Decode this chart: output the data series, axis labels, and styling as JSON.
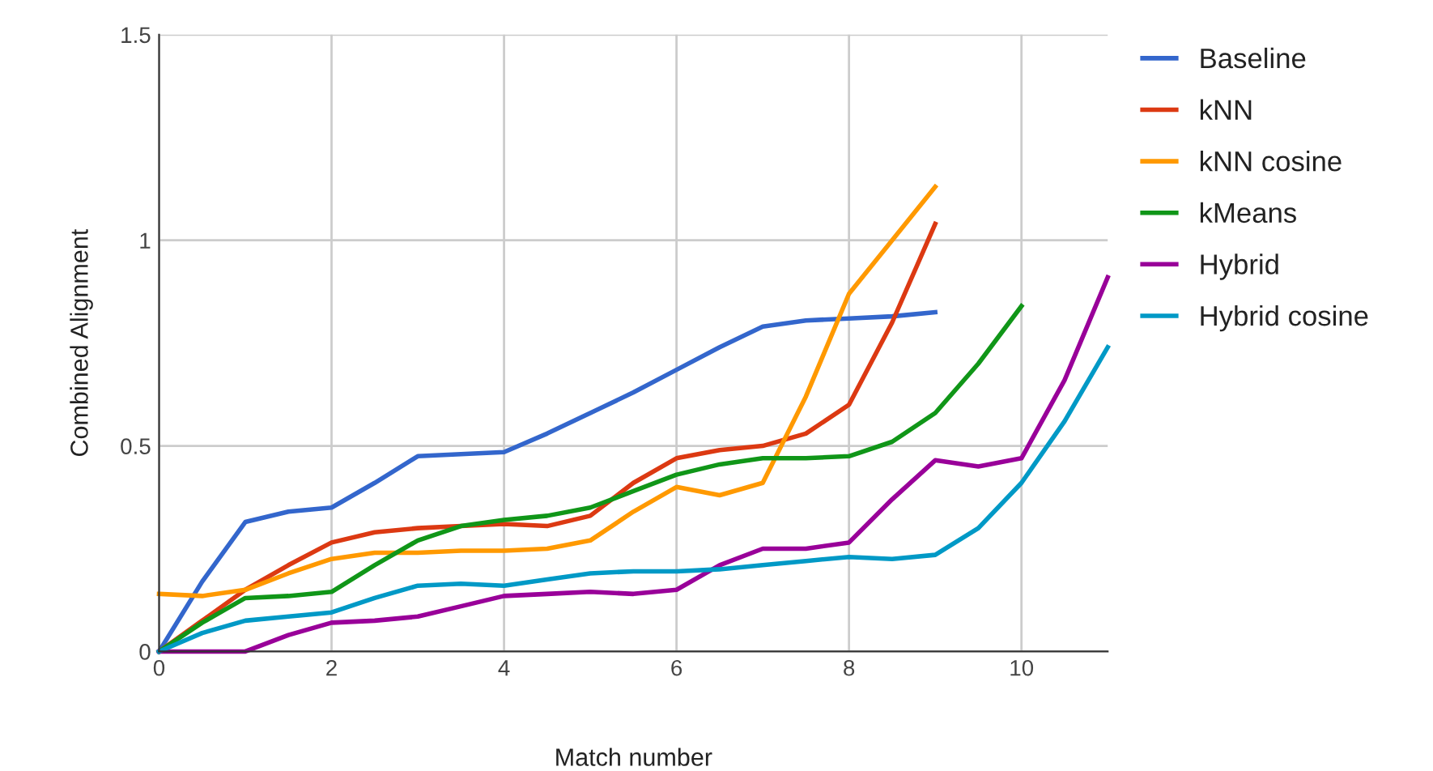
{
  "chart_data": {
    "type": "line",
    "xlabel": "Match number",
    "ylabel": "Combined Alignment",
    "x": [
      0,
      0.5,
      1,
      1.5,
      2,
      2.5,
      3,
      3.5,
      4,
      4.5,
      5,
      5.5,
      6,
      6.5,
      7,
      7.5,
      8,
      8.5,
      9,
      9.5,
      10,
      10.5,
      11
    ],
    "series": [
      {
        "name": "Baseline",
        "color": "#3366cc",
        "values": [
          0,
          0.17,
          0.315,
          0.34,
          0.35,
          0.41,
          0.475,
          0.48,
          0.485,
          0.53,
          0.58,
          0.63,
          0.685,
          0.74,
          0.79,
          0.805,
          0.81,
          0.815,
          0.825,
          null,
          null,
          null,
          null
        ]
      },
      {
        "name": "kNN",
        "color": "#dc3912",
        "values": [
          0,
          0.075,
          0.15,
          0.21,
          0.265,
          0.29,
          0.3,
          0.305,
          0.31,
          0.305,
          0.33,
          0.41,
          0.47,
          0.49,
          0.5,
          0.53,
          0.6,
          0.8,
          1.04,
          null,
          null,
          null,
          null
        ]
      },
      {
        "name": "kNN cosine",
        "color": "#ff9900",
        "values": [
          0.14,
          0.135,
          0.15,
          0.19,
          0.225,
          0.24,
          0.24,
          0.245,
          0.245,
          0.25,
          0.27,
          0.34,
          0.4,
          0.38,
          0.41,
          0.62,
          0.87,
          1.0,
          1.13,
          null,
          null,
          null,
          null
        ]
      },
      {
        "name": "kMeans",
        "color": "#109618",
        "values": [
          0,
          0.07,
          0.13,
          0.135,
          0.145,
          0.21,
          0.27,
          0.305,
          0.32,
          0.33,
          0.35,
          0.39,
          0.43,
          0.455,
          0.47,
          0.47,
          0.475,
          0.51,
          0.58,
          0.7,
          0.84,
          null,
          null
        ]
      },
      {
        "name": "Hybrid",
        "color": "#990099",
        "values": [
          0,
          0,
          0,
          0.04,
          0.07,
          0.075,
          0.085,
          0.11,
          0.135,
          0.14,
          0.145,
          0.14,
          0.15,
          0.21,
          0.25,
          0.25,
          0.265,
          0.37,
          0.465,
          0.45,
          0.47,
          0.66,
          0.91
        ]
      },
      {
        "name": "Hybrid cosine",
        "color": "#0099c6",
        "values": [
          0,
          0.045,
          0.075,
          0.085,
          0.095,
          0.13,
          0.16,
          0.165,
          0.16,
          0.175,
          0.19,
          0.195,
          0.195,
          0.2,
          0.21,
          0.22,
          0.23,
          0.225,
          0.235,
          0.3,
          0.41,
          0.56,
          0.74
        ]
      }
    ],
    "xlim": [
      0,
      11
    ],
    "xticks": [
      0,
      2,
      4,
      6,
      8,
      10
    ],
    "ylim": [
      0,
      1.5
    ],
    "yticks": [
      0,
      0.5,
      1,
      1.5
    ],
    "grid": true,
    "legend": "right",
    "line_style": "solid",
    "marker": "none"
  }
}
